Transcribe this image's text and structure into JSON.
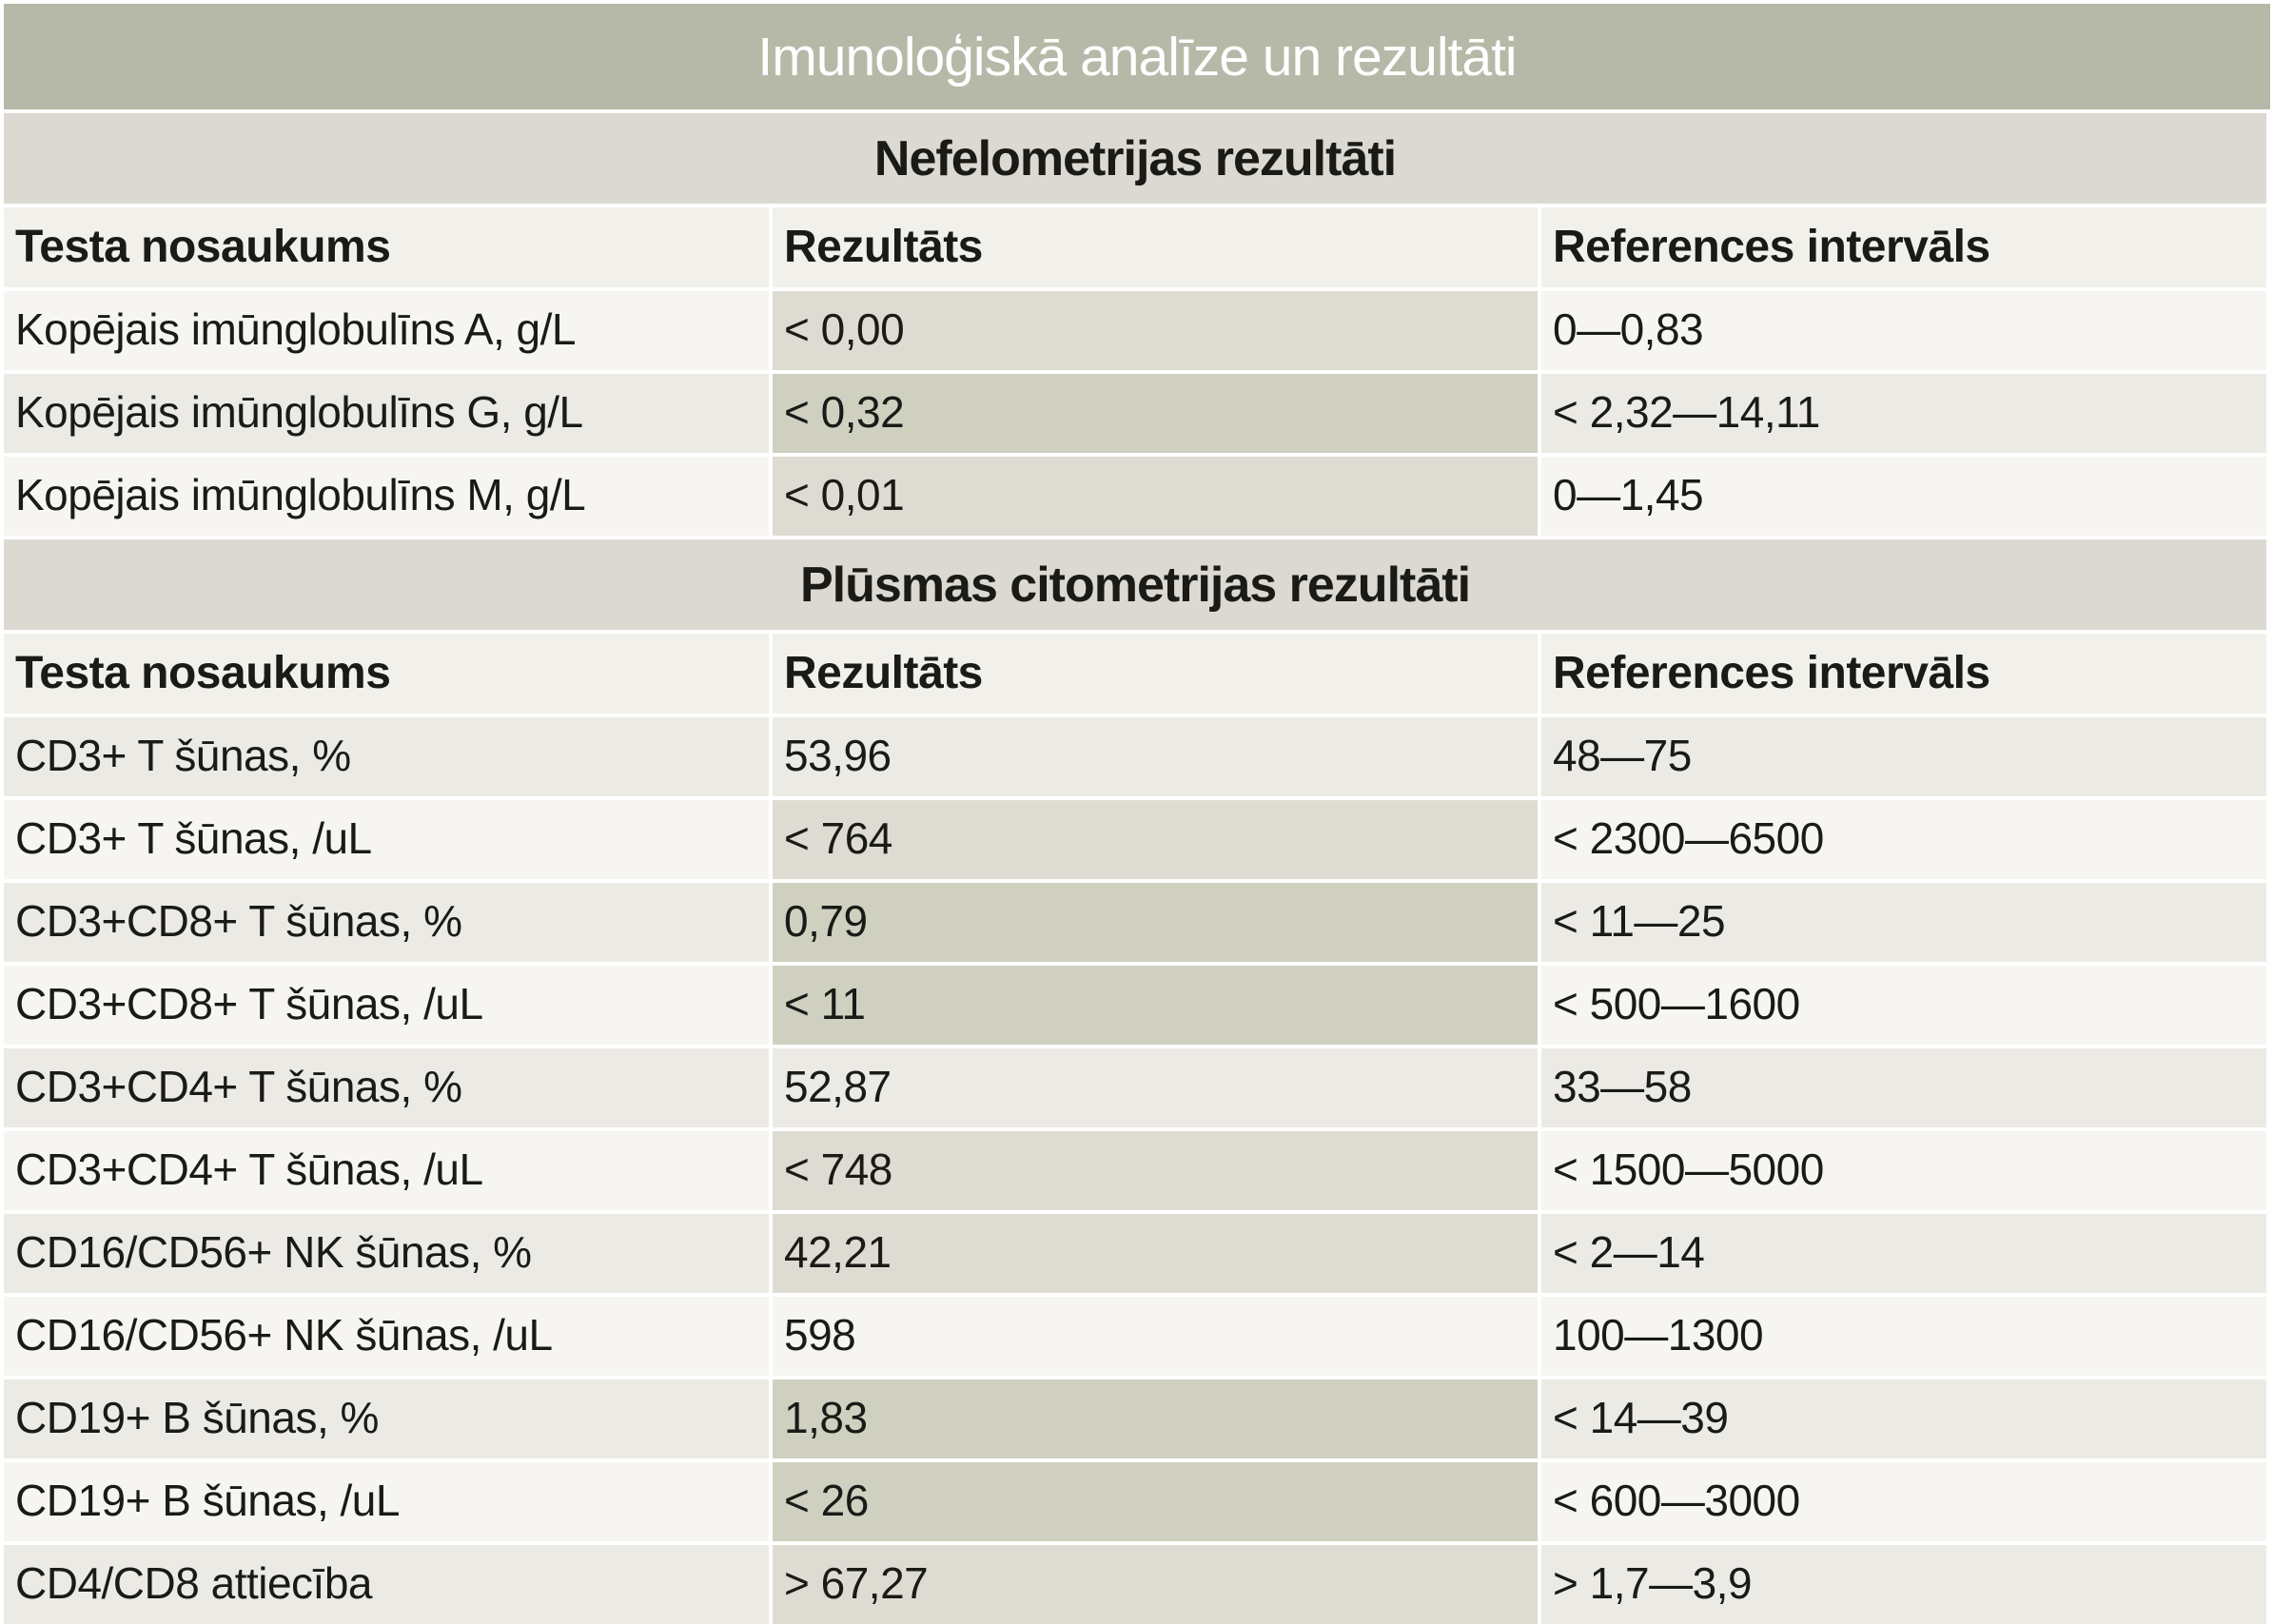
{
  "title": "Imunoloģiskā analīze un rezultāti",
  "columns": [
    "Testa nosaukums",
    "Rezultāts",
    "References intervāls"
  ],
  "sections": [
    {
      "heading": "Nefelometrijas rezultāti",
      "rows": [
        {
          "test": "Kopējais imūnglobulīns A, g/L",
          "result": "< 0,00",
          "reference": "0—0,83",
          "result_highlight": "mild"
        },
        {
          "test": "Kopējais imūnglobulīns G, g/L",
          "result": "< 0,32",
          "reference": "< 2,32—14,11",
          "result_highlight": "strong"
        },
        {
          "test": "Kopējais imūnglobulīns M, g/L",
          "result": "< 0,01",
          "reference": "0—1,45",
          "result_highlight": "mild"
        }
      ]
    },
    {
      "heading": "Plūsmas citometrijas rezultāti",
      "rows": [
        {
          "test": "CD3+ T šūnas, %",
          "result": "53,96",
          "reference": "48—75",
          "result_highlight": "none"
        },
        {
          "test": "CD3+ T šūnas, /uL",
          "result": "< 764",
          "reference": "< 2300—6500",
          "result_highlight": "mild"
        },
        {
          "test": "CD3+CD8+ T šūnas, %",
          "result": "0,79",
          "reference": "< 11—25",
          "result_highlight": "strong"
        },
        {
          "test": "CD3+CD8+ T šūnas, /uL",
          "result": "< 11",
          "reference": "< 500—1600",
          "result_highlight": "strong"
        },
        {
          "test": "CD3+CD4+ T šūnas, %",
          "result": "52,87",
          "reference": "33—58",
          "result_highlight": "none"
        },
        {
          "test": "CD3+CD4+ T šūnas, /uL",
          "result": "< 748",
          "reference": "< 1500—5000",
          "result_highlight": "mild"
        },
        {
          "test": "CD16/CD56+ NK šūnas, %",
          "result": "42,21",
          "reference": "< 2—14",
          "result_highlight": "mild"
        },
        {
          "test": "CD16/CD56+ NK šūnas, /uL",
          "result": "598",
          "reference": "100—1300",
          "result_highlight": "none"
        },
        {
          "test": "CD19+ B šūnas, %",
          "result": "1,83",
          "reference": "< 14—39",
          "result_highlight": "strong"
        },
        {
          "test": "CD19+ B šūnas, /uL",
          "result": "< 26",
          "reference": "< 600—3000",
          "result_highlight": "strong"
        },
        {
          "test": "CD4/CD8 attiecība",
          "result": "> 67,27",
          "reference": "> 1,7—3,9",
          "result_highlight": "mild"
        }
      ]
    }
  ],
  "colors": {
    "title_bg": "#b7b9a8",
    "title_fg": "#ffffff",
    "section_bg": "#dbd9d1",
    "header_row_bg": "#f1f0ea",
    "row_light": "#f6f5f1",
    "row_dark": "#eceae4",
    "result_mild": "#dedcd2",
    "result_strong": "#cfd0c0",
    "text": "#1a1a17"
  }
}
